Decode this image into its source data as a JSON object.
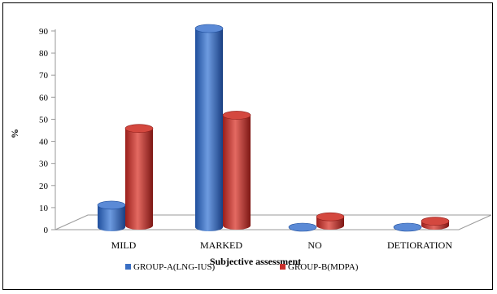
{
  "chart_data": {
    "type": "bar",
    "style": "3d-cylinder",
    "title": "",
    "xlabel": "Subjective assessment",
    "ylabel": "%",
    "ylim": [
      0,
      90
    ],
    "yticks": [
      0,
      10,
      20,
      30,
      40,
      50,
      60,
      70,
      80,
      90
    ],
    "categories": [
      "MILD",
      "MARKED",
      "NO",
      "DETIORATION"
    ],
    "series": [
      {
        "name": "GROUP-A(LNG-IUS)",
        "color": "#3a6fc4",
        "values": [
          10,
          90,
          0,
          0
        ]
      },
      {
        "name": "GROUP-B(MDPA)",
        "color": "#c9302c",
        "values": [
          44,
          50,
          4,
          2
        ]
      }
    ],
    "grid": false,
    "legend": "bottom"
  }
}
